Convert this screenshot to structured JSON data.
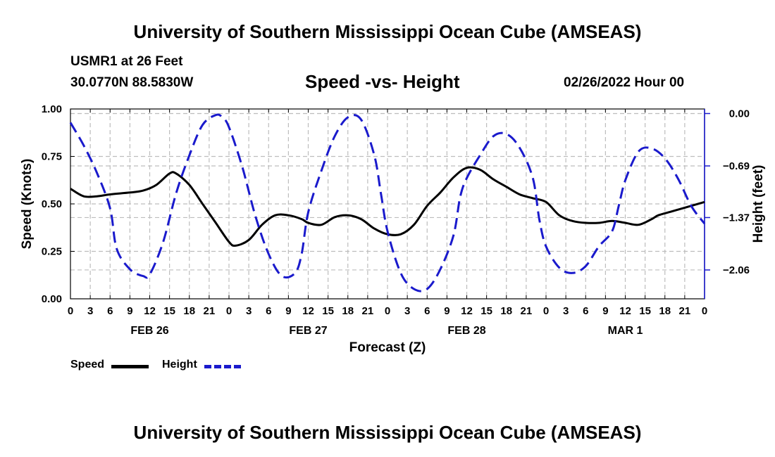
{
  "chart_data": {
    "type": "line",
    "title": "University of Southern Mississippi Ocean Cube (AMSEAS)",
    "footer_title": "University of Southern Mississippi Ocean Cube (AMSEAS)",
    "station": "USMR1 at 26 Feet",
    "location": "30.0770N  88.5830W",
    "subtitle": "Speed -vs- Height",
    "date": "02/26/2022 Hour 00",
    "xlabel": "Forecast (Z)",
    "ylabel_left": "Speed (Knots)",
    "ylabel_right": "Height (feet)",
    "x_range_hours": [
      0,
      96
    ],
    "x_tick_labels": [
      "0",
      "3",
      "6",
      "9",
      "12",
      "15",
      "18",
      "21",
      "0",
      "3",
      "6",
      "9",
      "12",
      "15",
      "18",
      "21",
      "0",
      "3",
      "6",
      "9",
      "12",
      "15",
      "18",
      "21",
      "0",
      "3",
      "6",
      "9",
      "12",
      "15",
      "18",
      "21",
      "0"
    ],
    "day_labels": [
      {
        "label": "FEB 26",
        "hour": 12
      },
      {
        "label": "FEB 27",
        "hour": 36
      },
      {
        "label": "FEB 28",
        "hour": 60
      },
      {
        "label": "MAR 1",
        "hour": 84
      }
    ],
    "y_left": {
      "range": [
        0,
        1
      ],
      "ticks": [
        0,
        0.25,
        0.5,
        0.75,
        1.0
      ],
      "tick_labels": [
        "0.00",
        "0.25",
        "0.50",
        "0.75",
        "1.00"
      ]
    },
    "y_right": {
      "range": [
        -2.44,
        0.06
      ],
      "ticks": [
        0,
        -0.69,
        -1.37,
        -2.06
      ],
      "tick_labels": [
        "0.00",
        "−0.69",
        "−1.37",
        "−2.06"
      ]
    },
    "grid": true,
    "legend": [
      {
        "label": "Speed",
        "color": "#000000",
        "dash": false
      },
      {
        "label": "Height",
        "color": "#1a1acc",
        "dash": true
      }
    ],
    "series": [
      {
        "name": "Speed",
        "axis": "left",
        "color": "#000000",
        "x": [
          0,
          2,
          4,
          6,
          9,
          11,
          13,
          15,
          16,
          18,
          20,
          22,
          24,
          25,
          27,
          29,
          31,
          33,
          35,
          36,
          38,
          40,
          42,
          44,
          46,
          48,
          50,
          52,
          54,
          56,
          58,
          60,
          62,
          64,
          66,
          68,
          70,
          72,
          74,
          76,
          78,
          80,
          82,
          84,
          86,
          88,
          89,
          91,
          93,
          96
        ],
        "values": [
          0.58,
          0.54,
          0.54,
          0.55,
          0.56,
          0.57,
          0.6,
          0.66,
          0.66,
          0.6,
          0.5,
          0.4,
          0.3,
          0.28,
          0.31,
          0.39,
          0.44,
          0.44,
          0.42,
          0.4,
          0.39,
          0.43,
          0.44,
          0.42,
          0.37,
          0.34,
          0.34,
          0.39,
          0.49,
          0.56,
          0.64,
          0.69,
          0.68,
          0.63,
          0.59,
          0.55,
          0.53,
          0.51,
          0.44,
          0.41,
          0.4,
          0.4,
          0.41,
          0.4,
          0.39,
          0.42,
          0.44,
          0.46,
          0.48,
          0.51
        ]
      },
      {
        "name": "Height",
        "axis": "right",
        "color": "#1a1acc",
        "x": [
          0,
          2,
          4,
          6,
          7,
          9,
          11,
          12,
          14,
          16,
          18,
          20,
          22,
          23,
          24,
          26,
          28,
          30,
          32,
          34,
          35,
          36,
          38,
          40,
          42,
          44,
          46,
          47,
          48,
          50,
          52,
          54,
          56,
          58,
          59,
          60,
          62,
          64,
          66,
          68,
          70,
          71,
          72,
          74,
          76,
          78,
          80,
          82,
          83,
          84,
          86,
          88,
          90,
          92,
          94,
          96
        ],
        "values": [
          -0.12,
          -0.42,
          -0.78,
          -1.25,
          -1.78,
          -2.05,
          -2.14,
          -2.12,
          -1.7,
          -1.05,
          -0.55,
          -0.15,
          -0.02,
          -0.05,
          -0.18,
          -0.7,
          -1.35,
          -1.85,
          -2.14,
          -2.1,
          -1.85,
          -1.3,
          -0.75,
          -0.3,
          -0.05,
          -0.08,
          -0.55,
          -1.05,
          -1.55,
          -2.1,
          -2.31,
          -2.31,
          -2.05,
          -1.6,
          -1.1,
          -0.85,
          -0.55,
          -0.3,
          -0.27,
          -0.45,
          -0.85,
          -1.4,
          -1.75,
          -2.03,
          -2.1,
          -2.01,
          -1.75,
          -1.55,
          -1.22,
          -0.88,
          -0.5,
          -0.46,
          -0.59,
          -0.86,
          -1.22,
          -1.45
        ]
      }
    ]
  }
}
